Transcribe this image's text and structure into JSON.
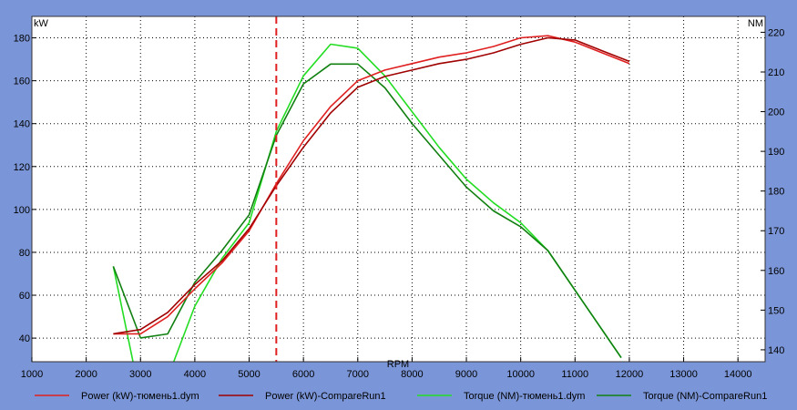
{
  "chart_data": {
    "type": "line",
    "xlabel": "RPM",
    "ylabel_left": "kW",
    "ylabel_right": "NM",
    "xlim": [
      1000,
      14500
    ],
    "x_ticks": [
      1000,
      2000,
      3000,
      4000,
      5000,
      6000,
      7000,
      8000,
      9000,
      10000,
      11000,
      12000,
      13000,
      14000
    ],
    "ylim_left": [
      29,
      190
    ],
    "y_ticks_left": [
      40,
      60,
      80,
      100,
      120,
      140,
      160,
      180
    ],
    "ylim_right": [
      137,
      224
    ],
    "y_ticks_right": [
      140,
      150,
      160,
      170,
      180,
      190,
      200,
      210,
      220
    ],
    "grid": true,
    "marker_rpm": 5500,
    "legend_position": "bottom",
    "series": [
      {
        "name": "Power (kW)-тюмень1.dym",
        "axis": "left",
        "color": "#e02020",
        "x": [
          2500,
          3000,
          3500,
          4000,
          4500,
          5000,
          5500,
          6000,
          6500,
          7000,
          7500,
          8000,
          8500,
          9000,
          9500,
          10000,
          10500,
          11000,
          11500,
          12000
        ],
        "values": [
          42,
          42,
          50,
          63,
          75,
          90,
          112,
          132,
          148,
          160,
          165,
          168,
          171,
          173,
          176,
          180,
          181,
          178,
          173,
          168
        ]
      },
      {
        "name": "Power (kW)-CompareRun1",
        "axis": "left",
        "color": "#a00000",
        "x": [
          2500,
          3000,
          3500,
          4000,
          4500,
          5000,
          5500,
          6000,
          6500,
          7000,
          7500,
          8000,
          8500,
          9000,
          9500,
          10000,
          10500,
          11000,
          11500,
          12000
        ],
        "values": [
          42,
          44,
          52,
          65,
          76,
          91,
          111,
          129,
          145,
          157,
          162,
          165,
          168,
          170,
          173,
          177,
          180,
          179,
          174,
          169
        ]
      },
      {
        "name": "Torque (NM)-тюмень1.dym",
        "axis": "right",
        "color": "#22dd22",
        "x": [
          2500,
          3000,
          3500,
          4000,
          4500,
          5000,
          5500,
          6000,
          6500,
          7000,
          7500,
          8000,
          8500,
          9000,
          9500,
          10000,
          10500,
          11000,
          11500,
          11850
        ],
        "values": [
          161,
          124,
          133,
          151,
          163,
          172,
          195,
          209,
          217,
          216,
          209,
          200,
          191,
          183,
          177,
          172,
          165,
          155,
          145,
          138
        ]
      },
      {
        "name": "Torque (NM)-CompareRun1",
        "axis": "right",
        "color": "#108010",
        "x": [
          2500,
          3000,
          3500,
          4000,
          4500,
          5000,
          5500,
          6000,
          6500,
          7000,
          7500,
          8000,
          8500,
          9000,
          9500,
          10000,
          10500,
          11000,
          11500,
          11850
        ],
        "values": [
          161,
          143,
          144,
          157,
          165,
          174,
          194,
          207,
          212,
          212,
          206,
          197,
          189,
          181,
          175,
          171,
          165,
          155,
          145,
          138
        ]
      }
    ]
  }
}
